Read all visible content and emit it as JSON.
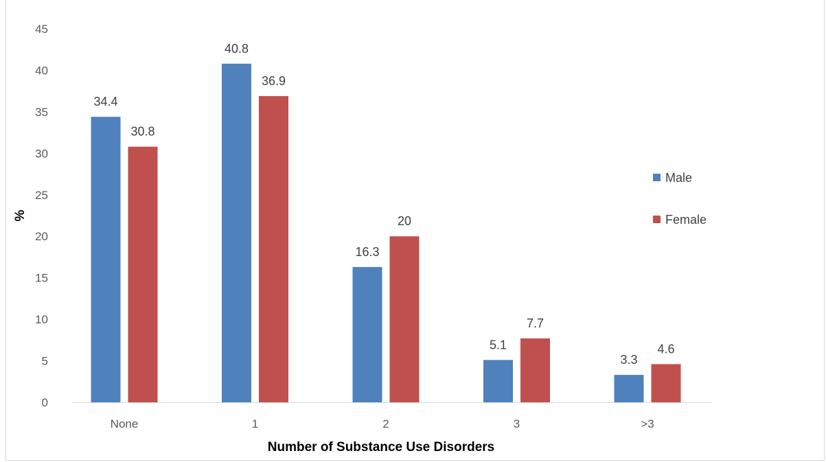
{
  "chart_data": {
    "type": "bar",
    "categories": [
      "None",
      "1",
      "2",
      "3",
      ">3"
    ],
    "series": [
      {
        "name": "Male",
        "color": "#4f81bd",
        "values": [
          34.4,
          40.8,
          16.3,
          5.1,
          3.3
        ],
        "labels": [
          "34.4",
          "40.8",
          "16.3",
          "5.1",
          "3.3"
        ]
      },
      {
        "name": "Female",
        "color": "#c0504d",
        "values": [
          30.8,
          36.9,
          20,
          7.7,
          4.6
        ],
        "labels": [
          "30.8",
          "36.9",
          "20",
          "7.7",
          "4.6"
        ]
      }
    ],
    "xlabel": "Number of Substance Use Disorders",
    "ylabel": "%",
    "ylim": [
      0,
      45
    ],
    "yticks": [
      "0",
      "5",
      "10",
      "15",
      "20",
      "25",
      "30",
      "35",
      "40",
      "45"
    ],
    "grid": false,
    "legend_position": "right"
  }
}
